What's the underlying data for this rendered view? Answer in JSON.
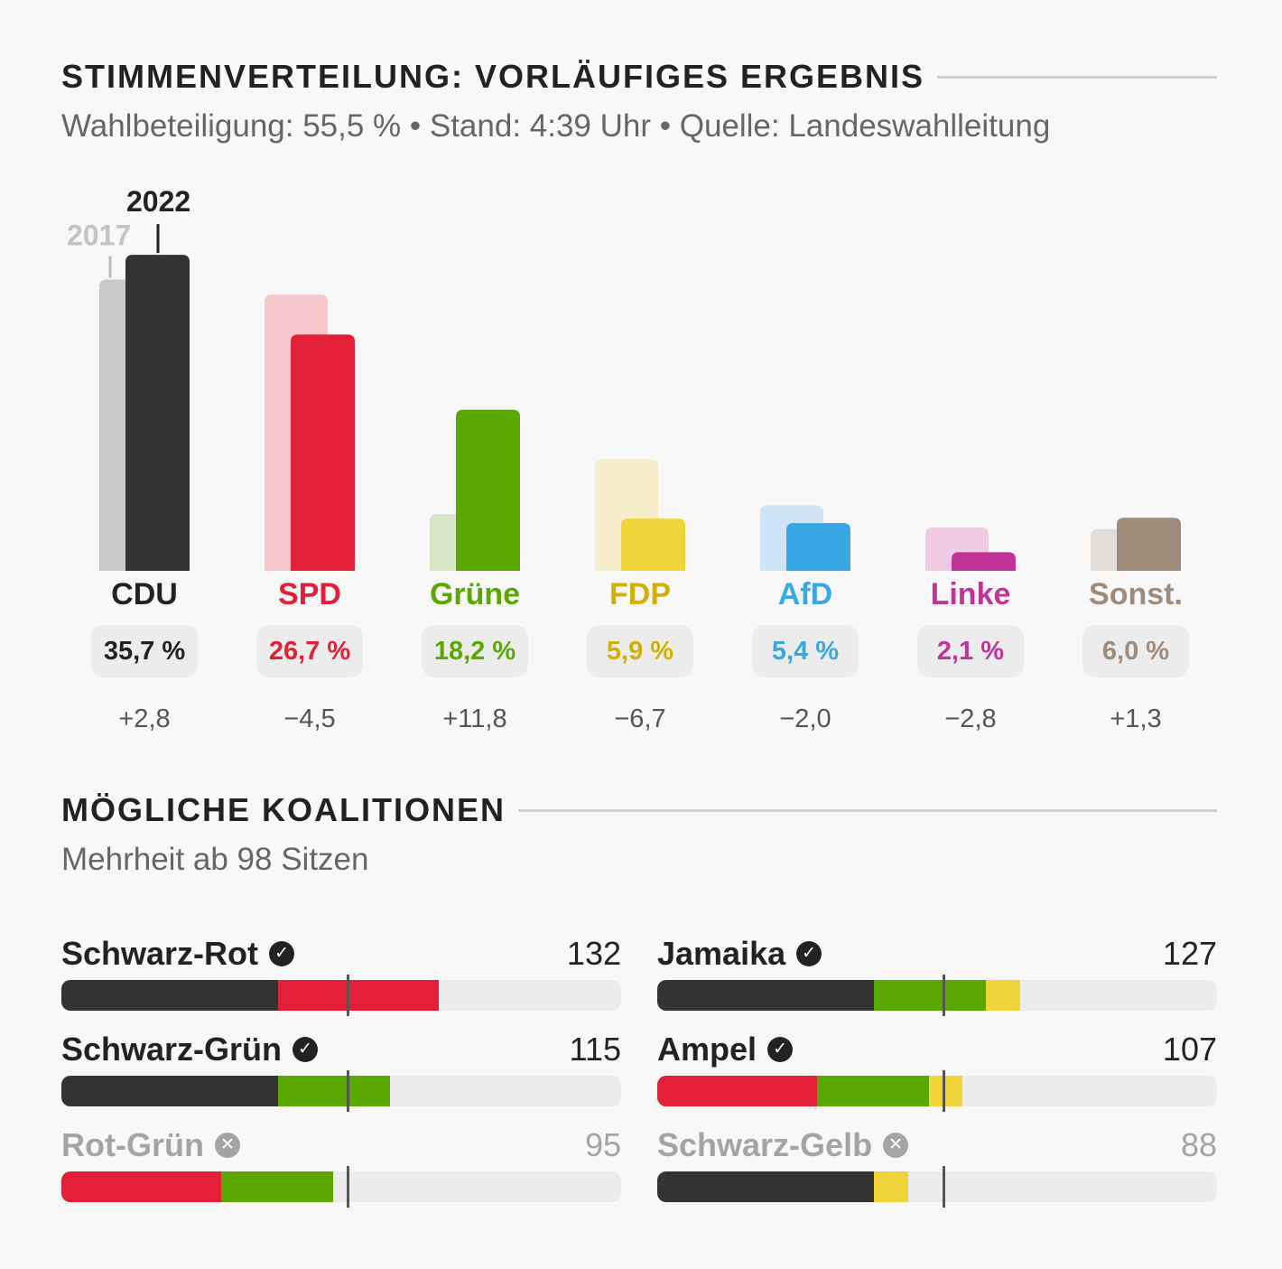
{
  "header": {
    "title": "STIMMENVERTEILUNG: VORLÄUFIGES ERGEBNIS",
    "subtitle": "Wahlbeteiligung: 55,5 % • Stand: 4:39 Uhr • Quelle: Landeswahlleitung"
  },
  "chart_data": {
    "type": "bar",
    "title": "STIMMENVERTEILUNG: VORLÄUFIGES ERGEBNIS",
    "series_labels": {
      "previous": "2017",
      "current": "2022"
    },
    "categories": [
      "CDU",
      "SPD",
      "Grüne",
      "FDP",
      "AfD",
      "Linke",
      "Sonst."
    ],
    "series": [
      {
        "name": "2017",
        "values": [
          32.9,
          31.2,
          6.4,
          12.6,
          7.4,
          4.9,
          4.7
        ]
      },
      {
        "name": "2022",
        "values": [
          35.7,
          26.7,
          18.2,
          5.9,
          5.4,
          2.1,
          6.0
        ]
      }
    ],
    "value_labels": [
      "35,7 %",
      "26,7 %",
      "18,2 %",
      "5,9 %",
      "5,4 %",
      "2,1 %",
      "6,0 %"
    ],
    "change_labels": [
      "+2,8",
      "−4,5",
      "+11,8",
      "−6,7",
      "−2,0",
      "−2,8",
      "+1,3"
    ],
    "colors": [
      "#333333",
      "#e31e37",
      "#5aa700",
      "#f0d43a",
      "#38a8e4",
      "#c13399",
      "#9e8b79"
    ],
    "colors_prev": [
      "#c8c8c8",
      "#f6c7ca",
      "#d6e6c5",
      "#f6eecb",
      "#cfe5f5",
      "#efcae2",
      "#e2ddd8"
    ],
    "name_colors": [
      "#222222",
      "#e31e37",
      "#5aa700",
      "#d4ae00",
      "#38a8e4",
      "#c13399",
      "#9e8b79"
    ],
    "ylim": [
      0,
      36
    ]
  },
  "coalitions": {
    "title": "MÖGLICHE KOALITIONEN",
    "subtitle": "Mehrheit ab 98 Sitzen",
    "majority": 98,
    "max_seats": 196,
    "items": [
      {
        "name": "Schwarz-Rot",
        "seats": "132",
        "has_majority": true,
        "segments": [
          {
            "seats": 76,
            "color": "#333333"
          },
          {
            "seats": 56,
            "color": "#e31e37"
          }
        ]
      },
      {
        "name": "Jamaika",
        "seats": "127",
        "has_majority": true,
        "segments": [
          {
            "seats": 76,
            "color": "#333333"
          },
          {
            "seats": 39,
            "color": "#5aa700"
          },
          {
            "seats": 12,
            "color": "#f0d43a"
          }
        ]
      },
      {
        "name": "Schwarz-Grün",
        "seats": "115",
        "has_majority": true,
        "segments": [
          {
            "seats": 76,
            "color": "#333333"
          },
          {
            "seats": 39,
            "color": "#5aa700"
          }
        ]
      },
      {
        "name": "Ampel",
        "seats": "107",
        "has_majority": true,
        "segments": [
          {
            "seats": 56,
            "color": "#e31e37"
          },
          {
            "seats": 39,
            "color": "#5aa700"
          },
          {
            "seats": 12,
            "color": "#f0d43a"
          }
        ]
      },
      {
        "name": "Rot-Grün",
        "seats": "95",
        "has_majority": false,
        "segments": [
          {
            "seats": 56,
            "color": "#e31e37"
          },
          {
            "seats": 39,
            "color": "#5aa700"
          }
        ]
      },
      {
        "name": "Schwarz-Gelb",
        "seats": "88",
        "has_majority": false,
        "segments": [
          {
            "seats": 76,
            "color": "#333333"
          },
          {
            "seats": 12,
            "color": "#f0d43a"
          }
        ]
      }
    ]
  },
  "icons": {
    "majority": "check-circle-icon",
    "no_majority": "x-circle-icon"
  }
}
